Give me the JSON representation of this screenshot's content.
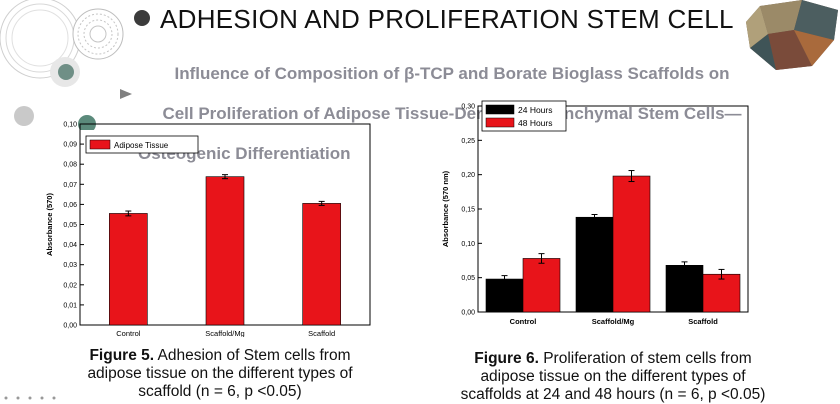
{
  "header": {
    "title": "ADHESION AND PROLIFERATION STEM CELL",
    "subtitle_lines": [
      "Influence of Composition of β-TCP and Borate Bioglass Scaffolds on",
      "Cell Proliferation of Adipose Tissue-Derived Mesenchymal Stem Cells—",
      "Osteogenic Differentiation"
    ]
  },
  "colors": {
    "red": "#e8141a",
    "black": "#000000",
    "gray_text": "#8c8c96"
  },
  "figure5": {
    "caption_bold": "Figure 5.",
    "caption_lines": [
      "Adhesion of Stem cells from",
      "adipose tissue on the different types of",
      "scaffold (n = 6, p <0.05)"
    ]
  },
  "figure6": {
    "caption_bold": "Figure 6.",
    "caption_lines": [
      "Proliferation of stem cells from",
      "adipose tissue on the different types of",
      "scaffolds at 24 and 48 hours (n = 6, p <0.05)"
    ]
  },
  "chart_data": [
    {
      "type": "bar",
      "categories": [
        "Control",
        "Scaffold/Mg",
        "Scaffold"
      ],
      "series": [
        {
          "name": "Adipose Tissue",
          "values": [
            0.0555,
            0.0738,
            0.0605
          ],
          "errors": [
            0.0012,
            0.001,
            0.001
          ],
          "color": "#e8141a"
        }
      ],
      "ylabel": "Absorbance  (570)",
      "xlabel": "",
      "ylim": [
        0,
        0.1
      ],
      "yticks": [
        "0,00",
        "0,01",
        "0,02",
        "0,03",
        "0,04",
        "0,05",
        "0,06",
        "0,07",
        "0,08",
        "0,09",
        "0,10"
      ],
      "legend": "top-left",
      "grid": false
    },
    {
      "type": "bar",
      "categories": [
        "Control",
        "Scaffold/Mg",
        "Scaffold"
      ],
      "series": [
        {
          "name": "24 Hours",
          "values": [
            0.048,
            0.138,
            0.068
          ],
          "errors": [
            0.005,
            0.004,
            0.005
          ],
          "color": "#000000"
        },
        {
          "name": "48 Hours",
          "values": [
            0.078,
            0.198,
            0.055
          ],
          "errors": [
            0.007,
            0.008,
            0.007
          ],
          "color": "#e8141a"
        }
      ],
      "ylabel": "Absorbance (570 nm)",
      "xlabel": "",
      "ylim": [
        0,
        0.3
      ],
      "yticks": [
        "0,00",
        "0,05",
        "0,10",
        "0,15",
        "0,20",
        "0,25",
        "0,30"
      ],
      "legend": "top-left",
      "grid": false
    }
  ]
}
